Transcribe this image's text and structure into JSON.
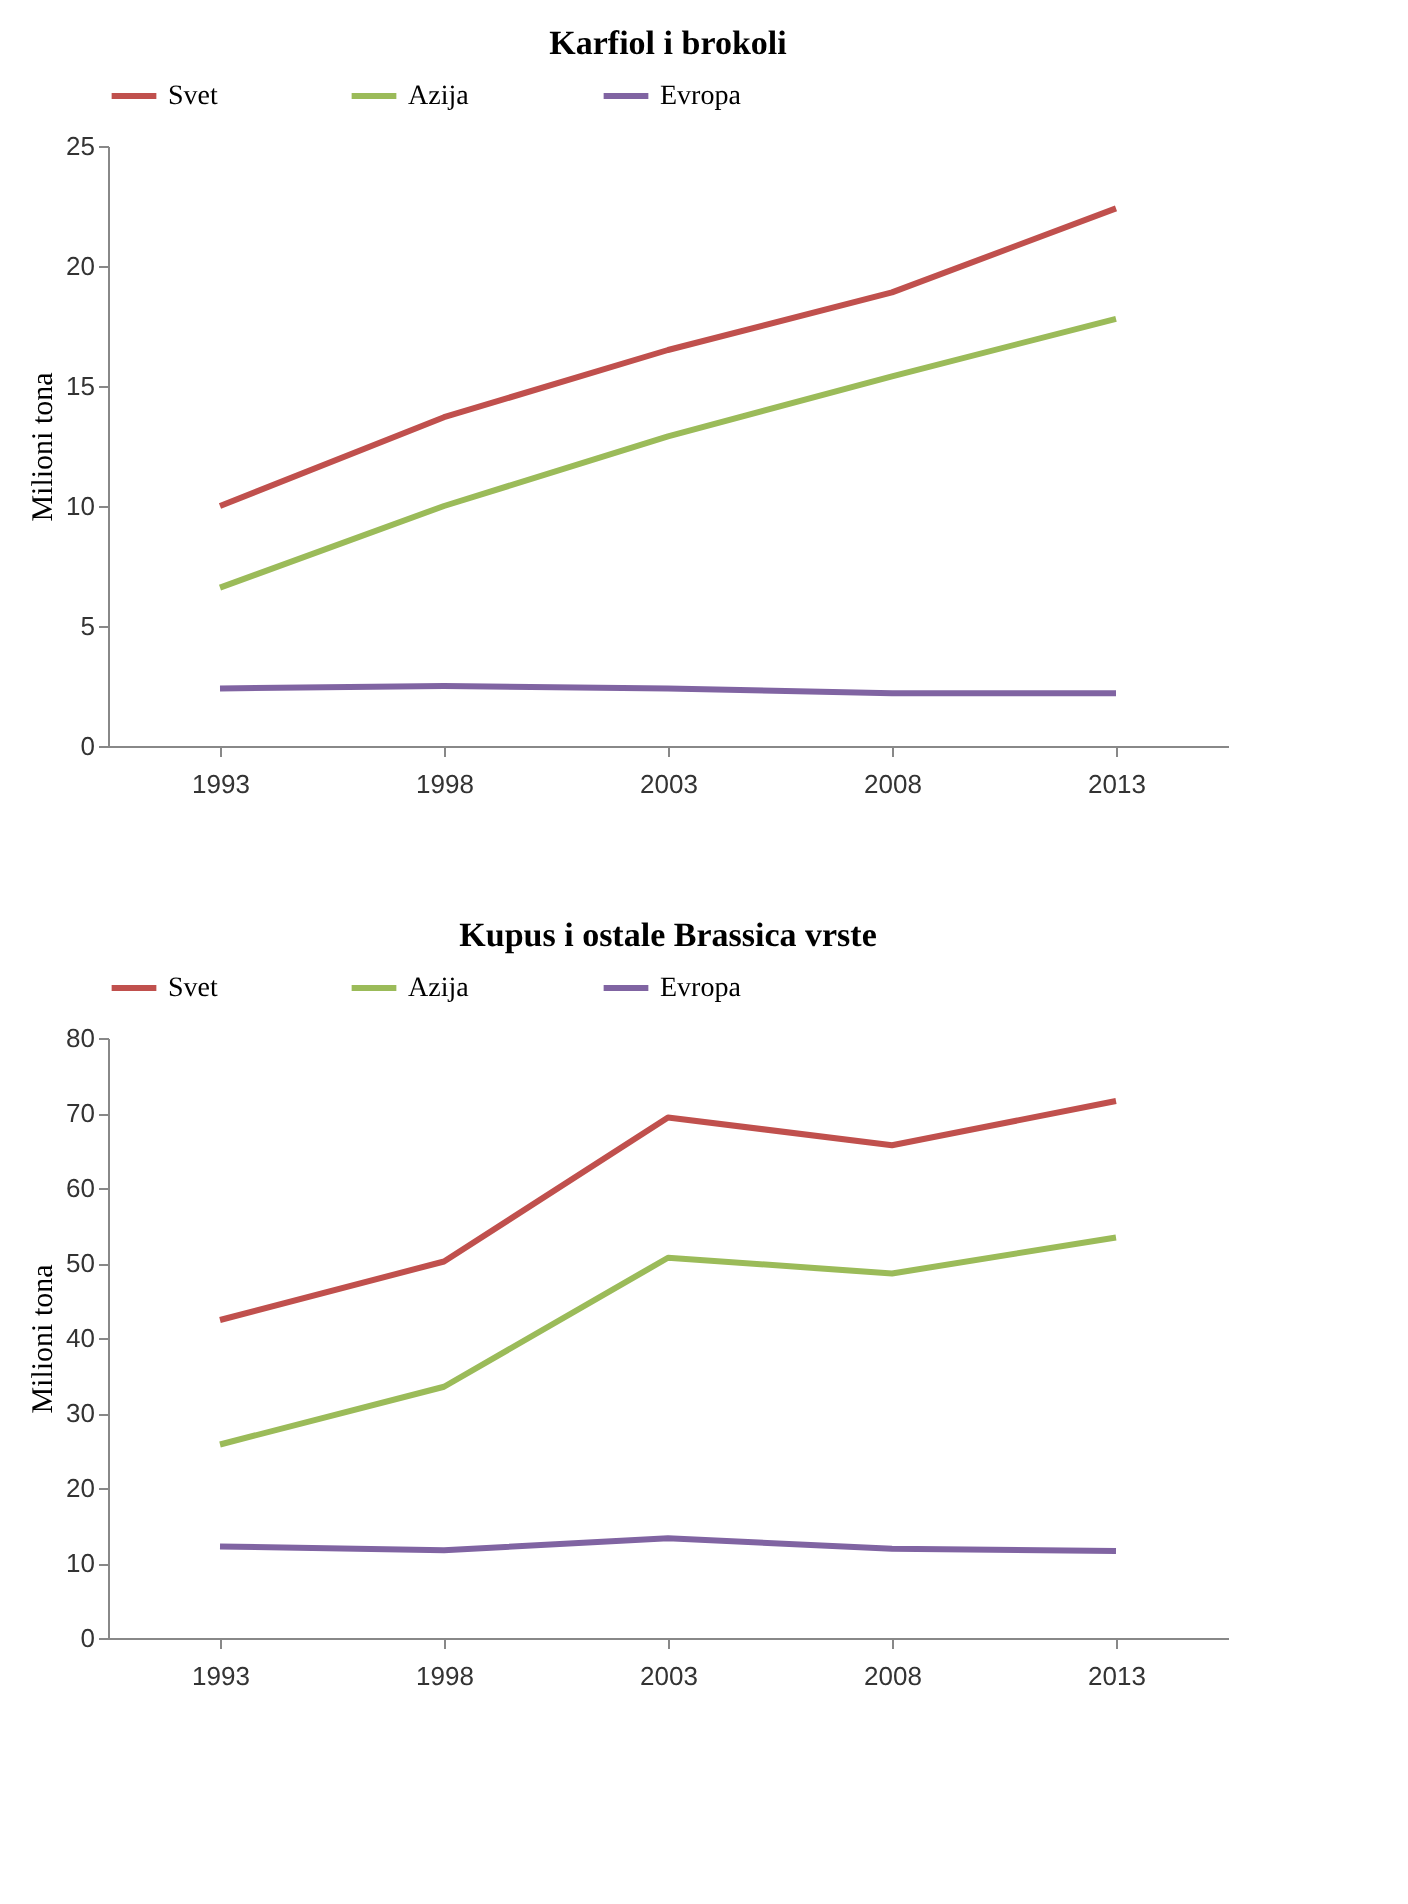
{
  "chart_data": [
    {
      "type": "line",
      "title": "Karfiol i brokoli",
      "ylabel": "Milioni tona",
      "categories": [
        "1993",
        "1998",
        "2003",
        "2008",
        "2013"
      ],
      "ylim": [
        0,
        25
      ],
      "yticks": [
        0,
        5,
        10,
        15,
        20,
        25
      ],
      "grid": false,
      "legend": "top",
      "series": [
        {
          "name": "Svet",
          "color": "#c0504d",
          "values": [
            10.0,
            13.7,
            16.5,
            18.9,
            22.4
          ]
        },
        {
          "name": "Azija",
          "color": "#9bbb59",
          "values": [
            6.6,
            10.0,
            12.9,
            15.4,
            17.8
          ]
        },
        {
          "name": "Evropa",
          "color": "#8064a2",
          "values": [
            2.4,
            2.5,
            2.4,
            2.2,
            2.2
          ]
        }
      ]
    },
    {
      "type": "line",
      "title": "Kupus i ostale Brassica vrste",
      "ylabel": "Milioni tona",
      "categories": [
        "1993",
        "1998",
        "2003",
        "2008",
        "2013"
      ],
      "ylim": [
        0,
        80
      ],
      "yticks": [
        0,
        10,
        20,
        30,
        40,
        50,
        60,
        70,
        80
      ],
      "grid": false,
      "legend": "top",
      "series": [
        {
          "name": "Svet",
          "color": "#c0504d",
          "values": [
            42.4,
            50.2,
            69.4,
            65.7,
            71.6
          ]
        },
        {
          "name": "Azija",
          "color": "#9bbb59",
          "values": [
            25.8,
            33.5,
            50.7,
            48.6,
            53.4
          ]
        },
        {
          "name": "Evropa",
          "color": "#8064a2",
          "values": [
            12.2,
            11.7,
            13.3,
            11.9,
            11.6
          ]
        }
      ]
    }
  ]
}
